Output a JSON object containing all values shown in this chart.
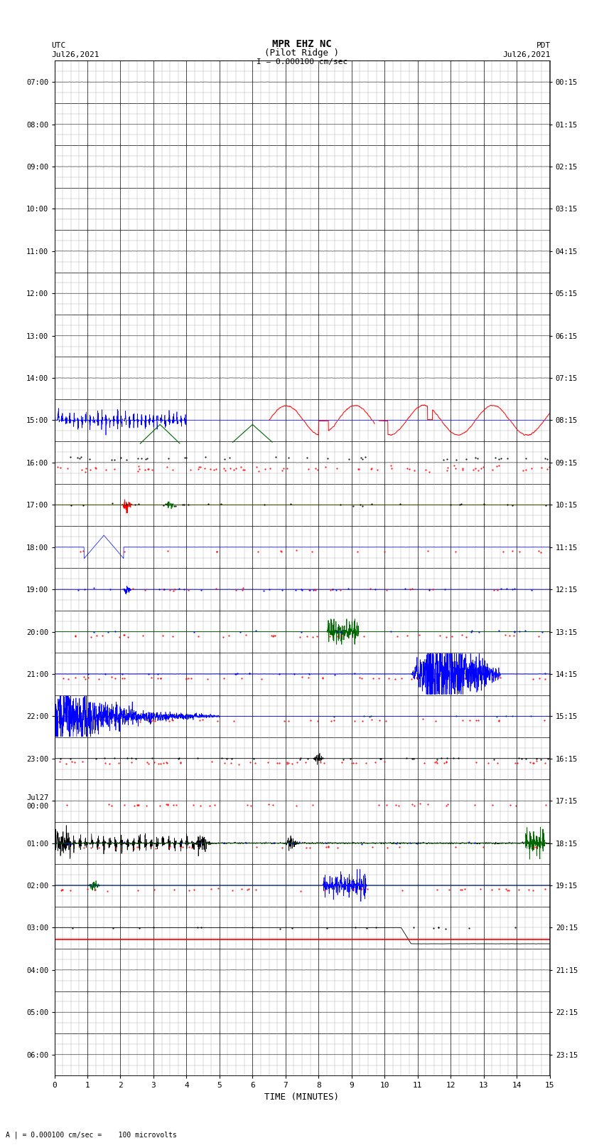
{
  "title_line1": "MPR EHZ NC",
  "title_line2": "(Pilot Ridge )",
  "scale_text": "I = 0.000100 cm/sec",
  "left_label_top": "UTC",
  "left_label_date": "Jul26,2021",
  "right_label_top": "PDT",
  "right_label_date": "Jul26,2021",
  "bottom_label": "TIME (MINUTES)",
  "scale_note": "A | = 0.000100 cm/sec =    100 microvolts",
  "utc_times": [
    "07:00",
    "08:00",
    "09:00",
    "10:00",
    "11:00",
    "12:00",
    "13:00",
    "14:00",
    "15:00",
    "16:00",
    "17:00",
    "18:00",
    "19:00",
    "20:00",
    "21:00",
    "22:00",
    "23:00",
    "Jul27\n00:00",
    "01:00",
    "02:00",
    "03:00",
    "04:00",
    "05:00",
    "06:00"
  ],
  "pdt_times": [
    "00:15",
    "01:15",
    "02:15",
    "03:15",
    "04:15",
    "05:15",
    "06:15",
    "07:15",
    "08:15",
    "09:15",
    "10:15",
    "11:15",
    "12:15",
    "13:15",
    "14:15",
    "15:15",
    "16:15",
    "17:15",
    "18:15",
    "19:15",
    "20:15",
    "21:15",
    "22:15",
    "23:15"
  ],
  "n_rows": 24,
  "n_minutes": 15,
  "bg_color": "#ffffff",
  "major_grid_color": "#000000",
  "minor_grid_color": "#aaaaaa",
  "trace_black": "#000000",
  "trace_blue": "#0000ff",
  "trace_red": "#ff0000",
  "trace_green": "#006600",
  "fig_width": 8.5,
  "fig_height": 16.13,
  "dpi": 100
}
